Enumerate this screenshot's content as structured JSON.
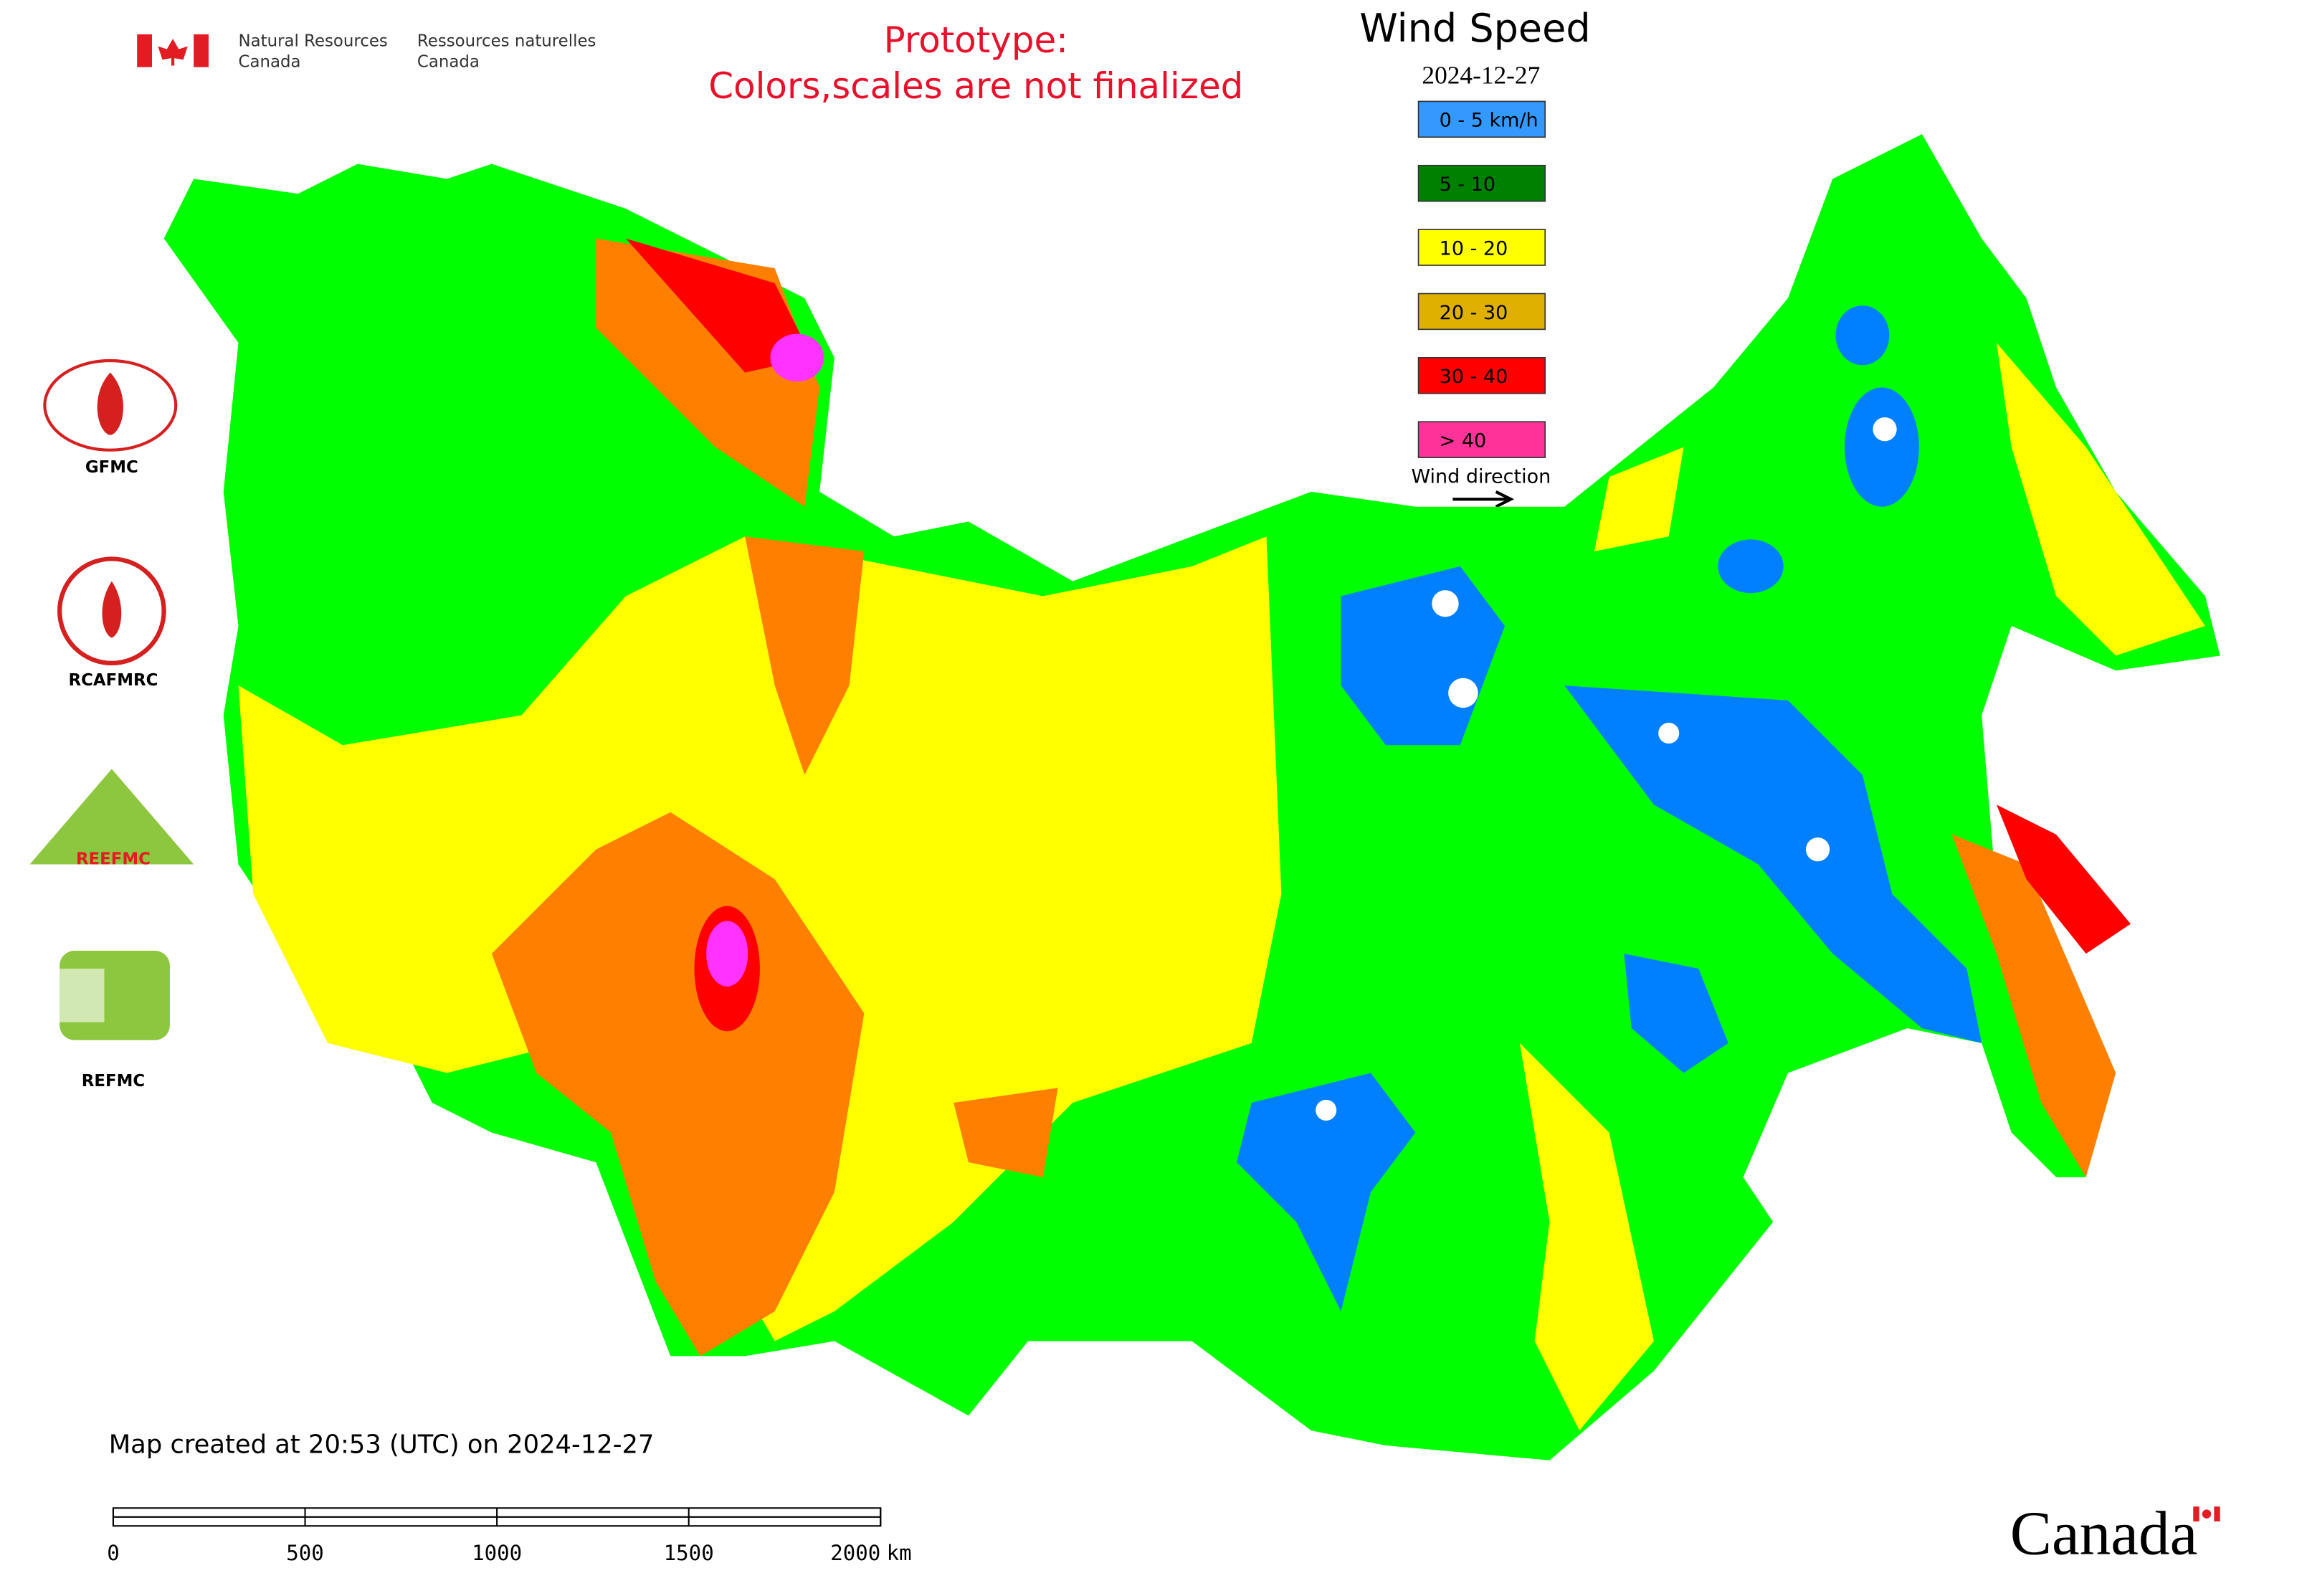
{
  "header": {
    "org_en": [
      "Natural Resources",
      "Canada"
    ],
    "org_fr": [
      "Ressources naturelles",
      "Canada"
    ]
  },
  "notice": [
    "Prototype:",
    "Colors,scales are not finalized"
  ],
  "legend": {
    "title": "Wind Speed",
    "date": "2024-12-27",
    "items": [
      {
        "label": "0 - 5 km/h",
        "color": "#3399ff"
      },
      {
        "label": "5 - 10",
        "color": "#008000"
      },
      {
        "label": "10 - 20",
        "color": "#ffff00"
      },
      {
        "label": "20 - 30",
        "color": "#e0b000"
      },
      {
        "label": "30 - 40",
        "color": "#ff0000"
      },
      {
        "label": "> 40",
        "color": "#ff3399"
      }
    ],
    "direction_label": "Wind direction"
  },
  "partners": [
    "GFMC",
    "RCAFMRC",
    "REEFMC",
    "REFMC"
  ],
  "footer": {
    "created": "Map created at 20:53 (UTC) on 2024-12-27",
    "wordmark": "Canada"
  },
  "scale_bar": {
    "ticks": [
      0,
      500,
      1000,
      1500,
      2000
    ],
    "unit": "km"
  }
}
